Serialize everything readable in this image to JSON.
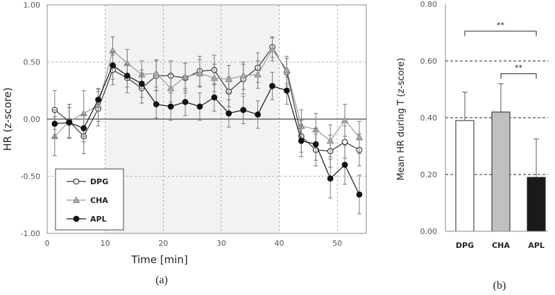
{
  "chart_data": [
    {
      "type": "line",
      "panel_label": "(a)",
      "xlabel": "Time [min]",
      "ylabel": "HR (z-score)",
      "xlim": [
        0,
        55
      ],
      "ylim": [
        -1.0,
        1.0
      ],
      "xticks": [
        "0",
        "10",
        "20",
        "30",
        "40",
        "50"
      ],
      "yticks": [
        "-1.00",
        "-0.50",
        "0.00",
        "0.50",
        "1.00"
      ],
      "shaded_interval": [
        10,
        40
      ],
      "legend_position": "bottom-left",
      "x": [
        1.3,
        3.8,
        6.3,
        8.8,
        11.3,
        13.8,
        16.3,
        18.8,
        21.3,
        23.8,
        26.3,
        28.8,
        31.3,
        33.8,
        36.3,
        38.8,
        41.3,
        43.8,
        46.3,
        48.8,
        51.3,
        53.8
      ],
      "series": [
        {
          "name": "DPG",
          "marker": "open-circle",
          "values": [
            0.08,
            -0.02,
            -0.15,
            0.09,
            0.43,
            0.36,
            0.27,
            0.38,
            0.38,
            0.36,
            0.42,
            0.43,
            0.24,
            0.35,
            0.45,
            0.63,
            0.41,
            -0.15,
            -0.27,
            -0.28,
            -0.2,
            -0.27
          ],
          "errors": [
            0.17,
            0.15,
            0.15,
            0.15,
            0.13,
            0.13,
            0.13,
            0.13,
            0.13,
            0.13,
            0.13,
            0.13,
            0.13,
            0.13,
            0.13,
            0.09,
            0.12,
            0.14,
            0.14,
            0.14,
            0.14,
            0.14
          ]
        },
        {
          "name": "CHA",
          "marker": "gray-triangle",
          "values": [
            -0.15,
            -0.02,
            0.05,
            0.12,
            0.6,
            0.49,
            0.39,
            0.4,
            0.27,
            0.37,
            0.4,
            0.36,
            0.35,
            0.38,
            0.39,
            0.61,
            0.43,
            -0.06,
            -0.09,
            -0.19,
            -0.01,
            -0.16
          ],
          "errors": [
            0.17,
            0.15,
            0.2,
            0.14,
            0.12,
            0.12,
            0.12,
            0.12,
            0.12,
            0.12,
            0.12,
            0.12,
            0.12,
            0.12,
            0.12,
            0.1,
            0.12,
            0.14,
            0.14,
            0.14,
            0.14,
            0.14
          ]
        },
        {
          "name": "APL",
          "marker": "filled-circle",
          "values": [
            -0.04,
            -0.03,
            -0.08,
            0.17,
            0.47,
            0.38,
            0.31,
            0.13,
            0.11,
            0.15,
            0.11,
            0.19,
            0.05,
            0.08,
            0.04,
            0.29,
            0.25,
            -0.19,
            -0.22,
            -0.52,
            -0.4,
            -0.66
          ],
          "errors": [
            0.12,
            0.13,
            0.12,
            0.1,
            0.12,
            0.1,
            0.12,
            0.12,
            0.12,
            0.12,
            0.12,
            0.12,
            0.12,
            0.12,
            0.12,
            0.12,
            0.12,
            0.14,
            0.14,
            0.17,
            0.17,
            0.17
          ]
        }
      ]
    },
    {
      "type": "bar",
      "panel_label": "(b)",
      "ylabel": "Mean HR  during T (z-score)",
      "ylim": [
        0.0,
        0.8
      ],
      "yticks": [
        "0.00",
        "0.20",
        "0.40",
        "0.60",
        "0.80"
      ],
      "categories": [
        "DPG",
        "CHA",
        "APL"
      ],
      "values": [
        0.39,
        0.42,
        0.19
      ],
      "errors": [
        0.1,
        0.1,
        0.135
      ],
      "bar_colors": [
        "#ffffff",
        "#c0c0c0",
        "#1a1a1a"
      ],
      "significance": [
        {
          "from": "DPG",
          "to": "APL",
          "label": "**"
        },
        {
          "from": "CHA",
          "to": "APL",
          "label": "**"
        }
      ]
    }
  ]
}
